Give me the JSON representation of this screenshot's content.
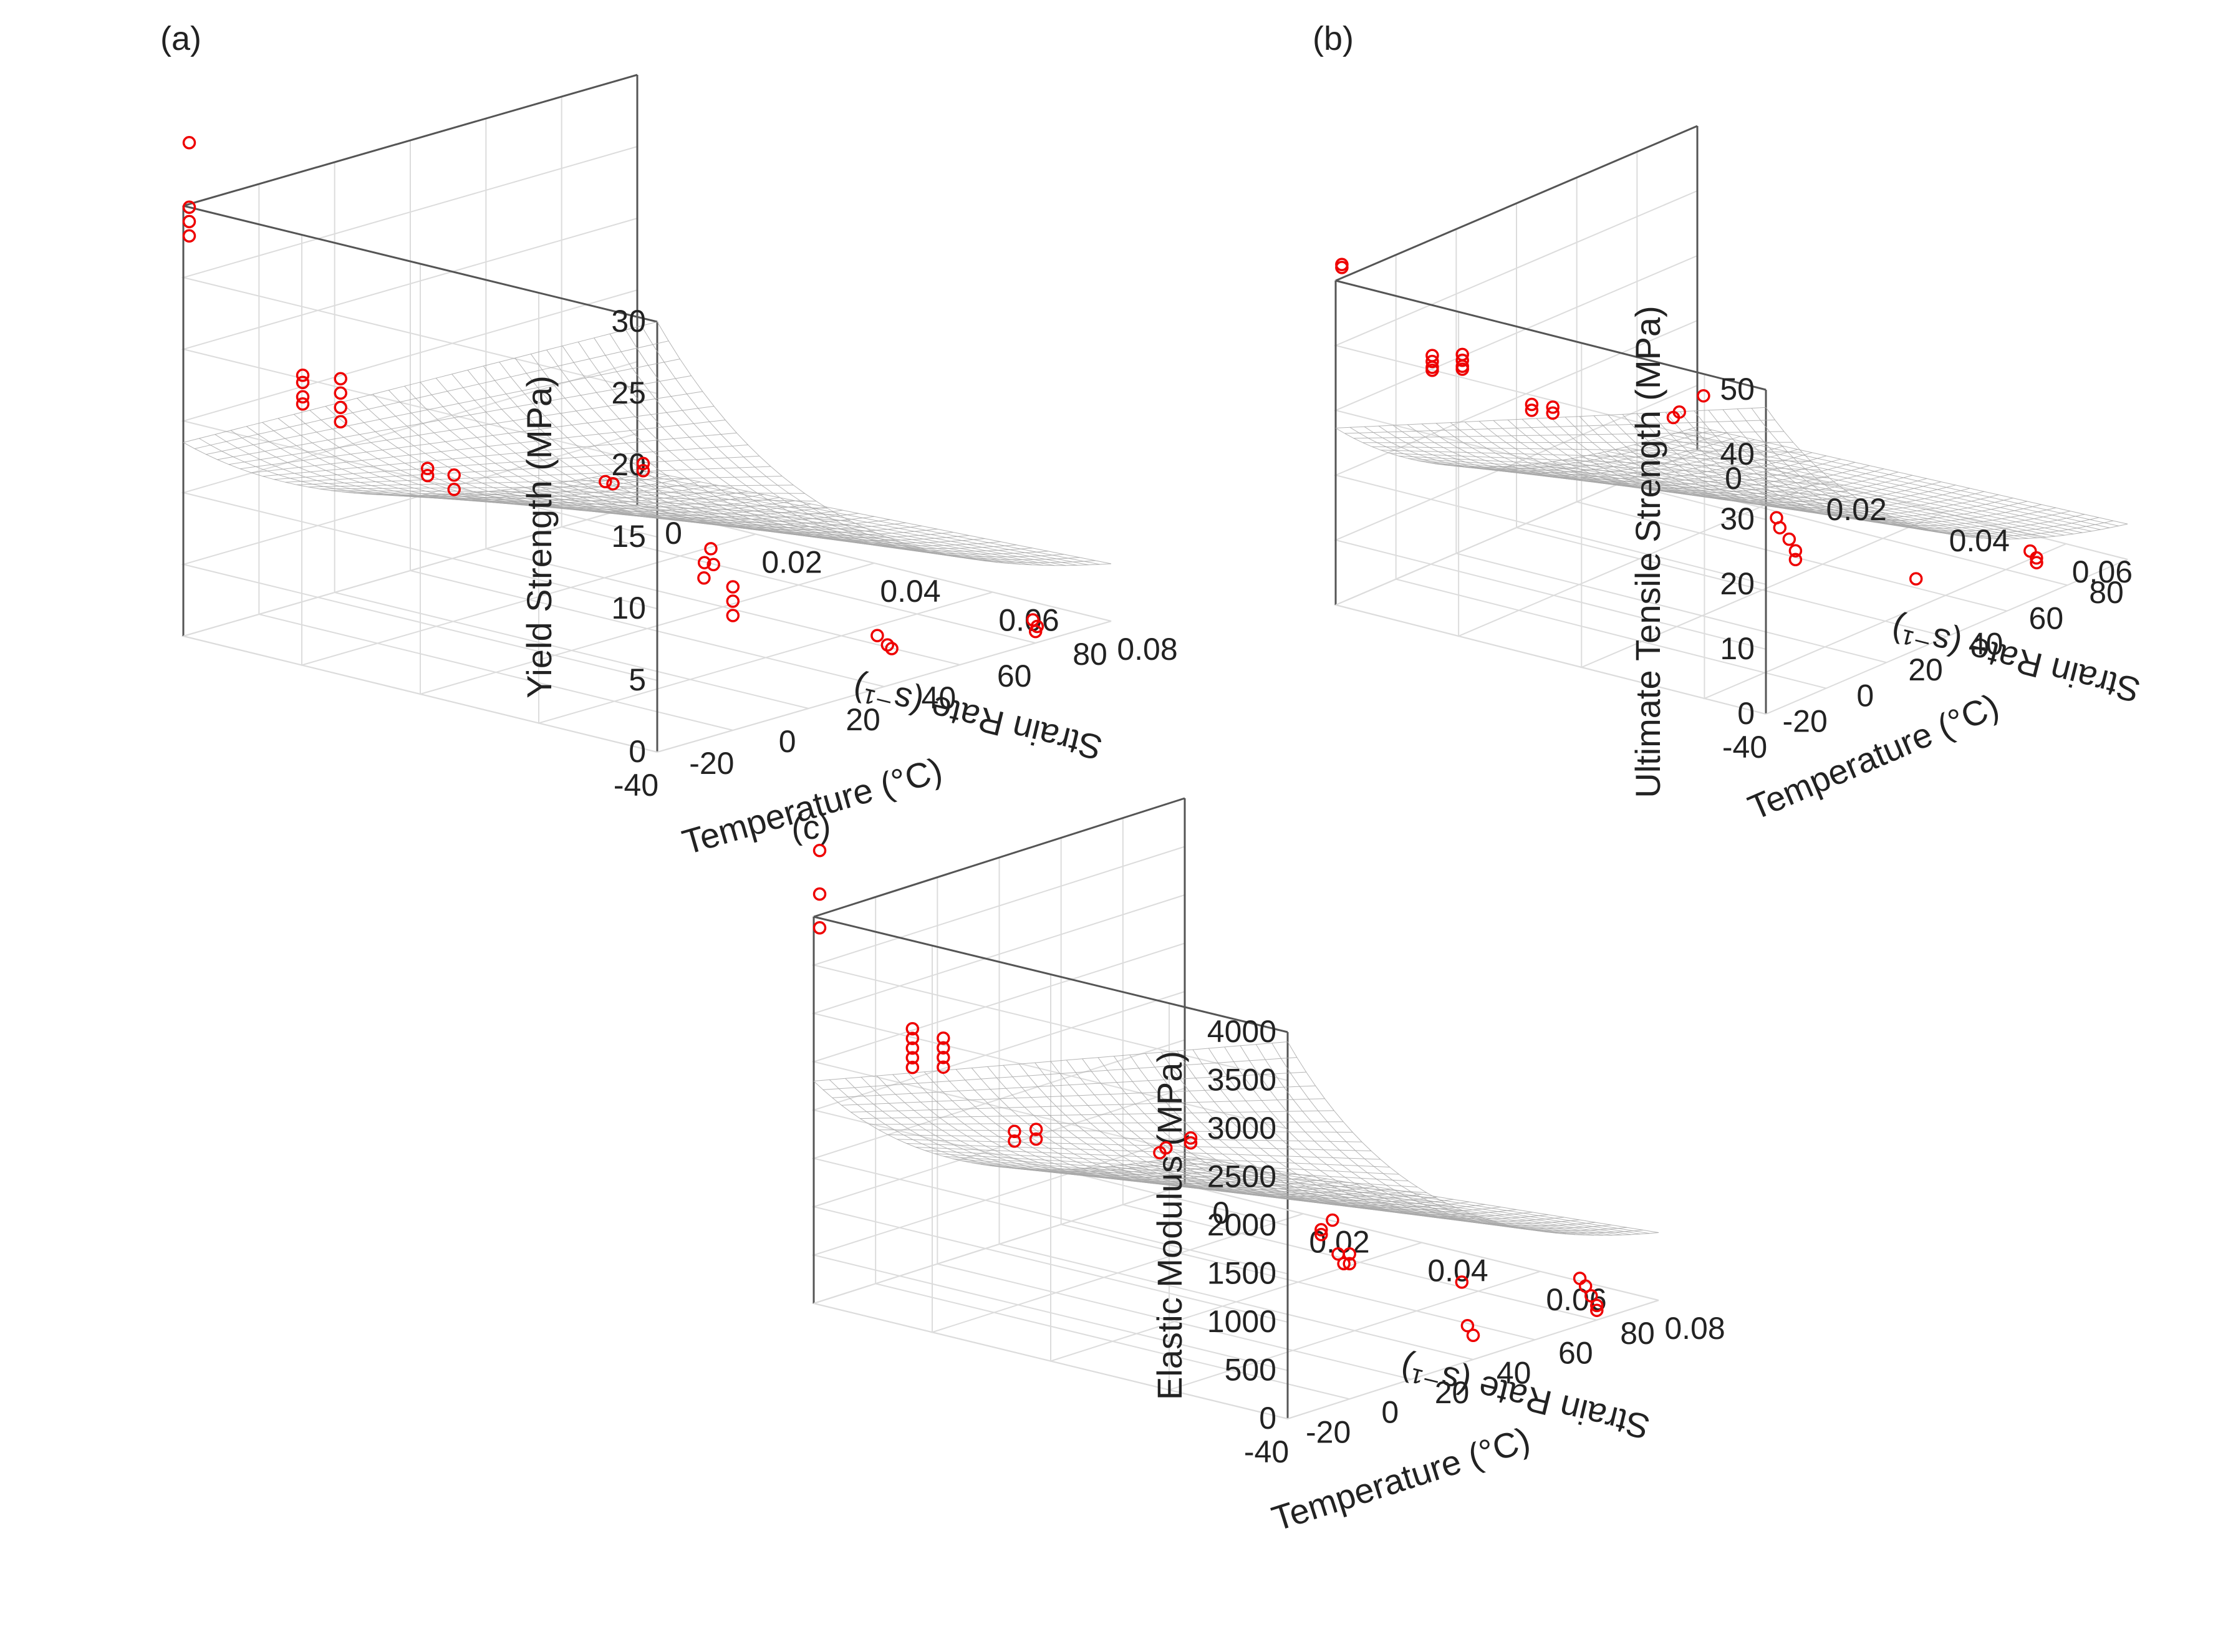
{
  "figure": {
    "panels": [
      "(a)",
      "(b)",
      "(c)"
    ]
  },
  "chart_data": [
    {
      "type": "scatter",
      "panel": "(a)",
      "title": "(a)",
      "xlabel": "Temperature (°C)",
      "ylabel": "Strain Rate (s⁻¹)",
      "zlabel": "Yield Strength (MPa)",
      "xticks": [
        "-40",
        "-20",
        "0",
        "20",
        "40",
        "60",
        "80"
      ],
      "yticks": [
        "0",
        "0.02",
        "0.04",
        "0.06",
        "0.08"
      ],
      "zticks": [
        "0",
        "5",
        "10",
        "15",
        "20",
        "25",
        "30"
      ],
      "xlim": [
        -40,
        80
      ],
      "ylim": [
        0,
        0.08
      ],
      "zlim": [
        0,
        30
      ],
      "grid": true,
      "surface": {
        "z_corner_cold_fast": 30,
        "z_corner_cold_slow": 13.5,
        "z_corner_hot_fast": 4,
        "z_corner_hot_slow": 2.5
      },
      "points": [
        {
          "x": -40,
          "y": 0.001,
          "z": 34.5
        },
        {
          "x": -40,
          "y": 0.001,
          "z": 30.0
        },
        {
          "x": -40,
          "y": 0.001,
          "z": 29.0
        },
        {
          "x": -40,
          "y": 0.001,
          "z": 28.0
        },
        {
          "x": -20,
          "y": 0.08,
          "z": 10.0
        },
        {
          "x": -20,
          "y": 0.08,
          "z": 9.0
        },
        {
          "x": -20,
          "y": 0.08,
          "z": 8.0
        },
        {
          "x": -22,
          "y": 0.078,
          "z": 11.5
        },
        {
          "x": -18,
          "y": 0.075,
          "z": 12.0
        },
        {
          "x": -15,
          "y": 0.072,
          "z": 10.5
        },
        {
          "x": -12,
          "y": 0.07,
          "z": 9.0
        },
        {
          "x": -10,
          "y": 0.001,
          "z": 16.0
        },
        {
          "x": -10,
          "y": 0.001,
          "z": 15.5
        },
        {
          "x": -10,
          "y": 0.001,
          "z": 14.5
        },
        {
          "x": -10,
          "y": 0.001,
          "z": 14.0
        },
        {
          "x": 0,
          "y": 0.001,
          "z": 15.0
        },
        {
          "x": 0,
          "y": 0.001,
          "z": 14.0
        },
        {
          "x": 0,
          "y": 0.001,
          "z": 13.0
        },
        {
          "x": 0,
          "y": 0.001,
          "z": 12.0
        },
        {
          "x": 22,
          "y": 0.08,
          "z": 2.5
        },
        {
          "x": 24,
          "y": 0.078,
          "z": 2.4
        },
        {
          "x": 26,
          "y": 0.075,
          "z": 2.6
        },
        {
          "x": 23,
          "y": 0.001,
          "z": 7.0
        },
        {
          "x": 23,
          "y": 0.001,
          "z": 6.5
        },
        {
          "x": 30,
          "y": 0.001,
          "z": 6.0
        },
        {
          "x": 30,
          "y": 0.001,
          "z": 5.0
        },
        {
          "x": 60,
          "y": 0.08,
          "z": 0.8
        },
        {
          "x": 62,
          "y": 0.079,
          "z": 0.9
        },
        {
          "x": 64,
          "y": 0.077,
          "z": 1.0
        },
        {
          "x": 70,
          "y": 0.001,
          "z": 2.5
        },
        {
          "x": 72,
          "y": 0.001,
          "z": 2.2
        },
        {
          "x": 80,
          "y": 0.001,
          "z": 3.0
        },
        {
          "x": 80,
          "y": 0.001,
          "z": 2.5
        }
      ]
    },
    {
      "type": "scatter",
      "panel": "(b)",
      "title": "(b)",
      "xlabel": "Temperature (°C)",
      "ylabel": "Strain Rate (s⁻¹)",
      "zlabel": "Ultimate Tensile Strength (MPa)",
      "xticks": [
        "-40",
        "-20",
        "0",
        "20",
        "40",
        "60",
        "80"
      ],
      "yticks": [
        "0",
        "0.02",
        "0.04",
        "0.06"
      ],
      "zticks": [
        "0",
        "10",
        "20",
        "30",
        "40",
        "50"
      ],
      "xlim": [
        -40,
        80
      ],
      "ylim": [
        0,
        0.07
      ],
      "zlim": [
        0,
        55
      ],
      "grid": true,
      "surface": {
        "z_corner_cold_fast": 52,
        "z_corner_cold_slow": 30,
        "z_corner_hot_fast": 6,
        "z_corner_hot_slow": 4
      },
      "points": [
        {
          "x": -40,
          "y": 0.001,
          "z": 58.0
        },
        {
          "x": -40,
          "y": 0.001,
          "z": 57.5
        },
        {
          "x": -20,
          "y": 0.065,
          "z": 22.0
        },
        {
          "x": -20,
          "y": 0.065,
          "z": 20.5
        },
        {
          "x": -18,
          "y": 0.063,
          "z": 23.0
        },
        {
          "x": -15,
          "y": 0.06,
          "z": 23.5
        },
        {
          "x": -12,
          "y": 0.058,
          "z": 24.0
        },
        {
          "x": -10,
          "y": 0.001,
          "z": 36.0
        },
        {
          "x": -10,
          "y": 0.001,
          "z": 35.0
        },
        {
          "x": -10,
          "y": 0.001,
          "z": 34.0
        },
        {
          "x": -10,
          "y": 0.001,
          "z": 33.5
        },
        {
          "x": 0,
          "y": 0.001,
          "z": 34.0
        },
        {
          "x": 0,
          "y": 0.001,
          "z": 33.0
        },
        {
          "x": 0,
          "y": 0.001,
          "z": 32.0
        },
        {
          "x": 0,
          "y": 0.001,
          "z": 31.5
        },
        {
          "x": 20,
          "y": 0.065,
          "z": 8.5
        },
        {
          "x": 23,
          "y": 0.001,
          "z": 20.5
        },
        {
          "x": 23,
          "y": 0.001,
          "z": 19.5
        },
        {
          "x": 30,
          "y": 0.001,
          "z": 18.5
        },
        {
          "x": 30,
          "y": 0.001,
          "z": 17.5
        },
        {
          "x": 60,
          "y": 0.065,
          "z": 2.5
        },
        {
          "x": 62,
          "y": 0.064,
          "z": 2.6
        },
        {
          "x": 64,
          "y": 0.062,
          "z": 2.8
        },
        {
          "x": 70,
          "y": 0.001,
          "z": 8.0
        },
        {
          "x": 72,
          "y": 0.001,
          "z": 8.5
        },
        {
          "x": 80,
          "y": 0.001,
          "z": 9.5
        }
      ]
    },
    {
      "type": "scatter",
      "panel": "(c)",
      "title": "(c)",
      "xlabel": "Temperature (°C)",
      "ylabel": "Strain Rate (s⁻¹)",
      "zlabel": "Elastic Modulus (MPa)",
      "xticks": [
        "-40",
        "-20",
        "0",
        "20",
        "40",
        "60",
        "80"
      ],
      "yticks": [
        "0",
        "0.02",
        "0.04",
        "0.06",
        "0.08"
      ],
      "zticks": [
        "0",
        "500",
        "1000",
        "1500",
        "2000",
        "2500",
        "3000",
        "3500",
        "4000"
      ],
      "xlim": [
        -40,
        80
      ],
      "ylim": [
        0,
        0.08
      ],
      "zlim": [
        0,
        4000
      ],
      "grid": true,
      "surface": {
        "z_corner_cold_fast": 3900,
        "z_corner_cold_slow": 2300,
        "z_corner_hot_fast": 700,
        "z_corner_hot_slow": 300
      },
      "points": [
        {
          "x": -40,
          "y": 0.001,
          "z": 4700
        },
        {
          "x": -40,
          "y": 0.001,
          "z": 4250
        },
        {
          "x": -40,
          "y": 0.001,
          "z": 3900
        },
        {
          "x": -20,
          "y": 0.08,
          "z": 1500
        },
        {
          "x": -20,
          "y": 0.08,
          "z": 1400
        },
        {
          "x": -18,
          "y": 0.078,
          "z": 1350
        },
        {
          "x": -16,
          "y": 0.076,
          "z": 1400
        },
        {
          "x": -14,
          "y": 0.074,
          "z": 1700
        },
        {
          "x": -10,
          "y": 0.07,
          "z": 1500
        },
        {
          "x": -10,
          "y": 0.07,
          "z": 1450
        },
        {
          "x": -10,
          "y": 0.001,
          "z": 2550
        },
        {
          "x": -10,
          "y": 0.001,
          "z": 2450
        },
        {
          "x": -10,
          "y": 0.001,
          "z": 2350
        },
        {
          "x": -10,
          "y": 0.001,
          "z": 2250
        },
        {
          "x": -10,
          "y": 0.001,
          "z": 2150
        },
        {
          "x": 0,
          "y": 0.001,
          "z": 2350
        },
        {
          "x": 0,
          "y": 0.001,
          "z": 2250
        },
        {
          "x": 0,
          "y": 0.001,
          "z": 2150
        },
        {
          "x": 0,
          "y": 0.001,
          "z": 2050
        },
        {
          "x": 20,
          "y": 0.08,
          "z": 250
        },
        {
          "x": 22,
          "y": 0.078,
          "z": 300
        },
        {
          "x": 24,
          "y": 0.076,
          "z": 700
        },
        {
          "x": 23,
          "y": 0.001,
          "z": 1150
        },
        {
          "x": 23,
          "y": 0.001,
          "z": 1050
        },
        {
          "x": 30,
          "y": 0.001,
          "z": 1100
        },
        {
          "x": 30,
          "y": 0.001,
          "z": 1000
        },
        {
          "x": 60,
          "y": 0.08,
          "z": 150
        },
        {
          "x": 60,
          "y": 0.08,
          "z": 100
        },
        {
          "x": 62,
          "y": 0.078,
          "z": 200
        },
        {
          "x": 64,
          "y": 0.076,
          "z": 250
        },
        {
          "x": 66,
          "y": 0.074,
          "z": 280
        },
        {
          "x": 70,
          "y": 0.001,
          "z": 450
        },
        {
          "x": 72,
          "y": 0.001,
          "z": 480
        },
        {
          "x": 80,
          "y": 0.001,
          "z": 500
        },
        {
          "x": 80,
          "y": 0.001,
          "z": 450
        }
      ]
    }
  ]
}
